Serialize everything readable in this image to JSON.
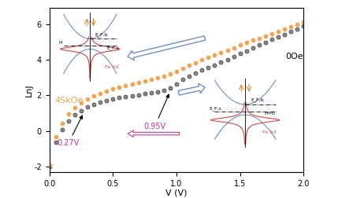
{
  "chart_data": {
    "type": "scatter",
    "x_label": "V (V)",
    "y_label": "LnJ",
    "x": [
      0.0,
      0.05,
      0.1,
      0.15,
      0.2,
      0.25,
      0.3,
      0.35,
      0.4,
      0.45,
      0.5,
      0.55,
      0.6,
      0.65,
      0.7,
      0.75,
      0.8,
      0.85,
      0.9,
      0.95,
      1.0,
      1.05,
      1.1,
      1.15,
      1.2,
      1.25,
      1.3,
      1.35,
      1.4,
      1.45,
      1.5,
      1.55,
      1.6,
      1.65,
      1.7,
      1.75,
      1.8,
      1.85,
      1.9,
      1.95,
      2.0
    ],
    "series": [
      {
        "name": "0Oe",
        "color": "#8c8c8c",
        "marker": "o",
        "values": [
          -2.0,
          -0.6,
          0.1,
          0.55,
          0.9,
          1.15,
          1.35,
          1.5,
          1.62,
          1.72,
          1.8,
          1.87,
          1.93,
          1.99,
          2.04,
          2.09,
          2.14,
          2.2,
          2.28,
          2.42,
          2.65,
          2.88,
          3.08,
          3.26,
          3.42,
          3.56,
          3.7,
          3.86,
          4.02,
          4.18,
          4.34,
          4.5,
          4.66,
          4.82,
          4.98,
          5.13,
          5.28,
          5.43,
          5.58,
          5.73,
          5.88
        ]
      },
      {
        "name": "45kOe",
        "color": "#f5a04a",
        "marker": "o",
        "values": [
          -1.9,
          -0.3,
          0.45,
          0.95,
          1.3,
          1.58,
          1.8,
          1.98,
          2.12,
          2.25,
          2.36,
          2.46,
          2.55,
          2.64,
          2.72,
          2.8,
          2.88,
          2.97,
          3.07,
          3.2,
          3.36,
          3.53,
          3.69,
          3.84,
          3.98,
          4.12,
          4.26,
          4.4,
          4.54,
          4.68,
          4.82,
          4.95,
          5.08,
          5.21,
          5.34,
          5.47,
          5.6,
          5.73,
          5.86,
          5.99,
          6.12
        ]
      }
    ],
    "xlim": [
      0.0,
      2.0
    ],
    "xticks": [
      {
        "value": 0.0,
        "label": "0.0"
      },
      {
        "value": 0.5,
        "label": "0.5"
      },
      {
        "value": 1.0,
        "label": "1.0"
      },
      {
        "value": 1.5,
        "label": "1.5"
      },
      {
        "value": 2.0,
        "label": "2.0"
      }
    ],
    "ylim": [
      -2.3,
      6.9
    ],
    "yticks": [
      -2,
      0,
      2,
      4,
      6
    ],
    "grid": false,
    "markers": [
      {
        "label": "0.27V",
        "x": 0.27
      },
      {
        "label": "0.95V",
        "x": 0.95
      }
    ],
    "inset_left": [
      "E_F,b",
      "E_F,s",
      "H",
      "Fe 3d"
    ],
    "inset_right": [
      "E_F,b",
      "H=0",
      "E_F,s",
      "Fe 3d"
    ]
  }
}
